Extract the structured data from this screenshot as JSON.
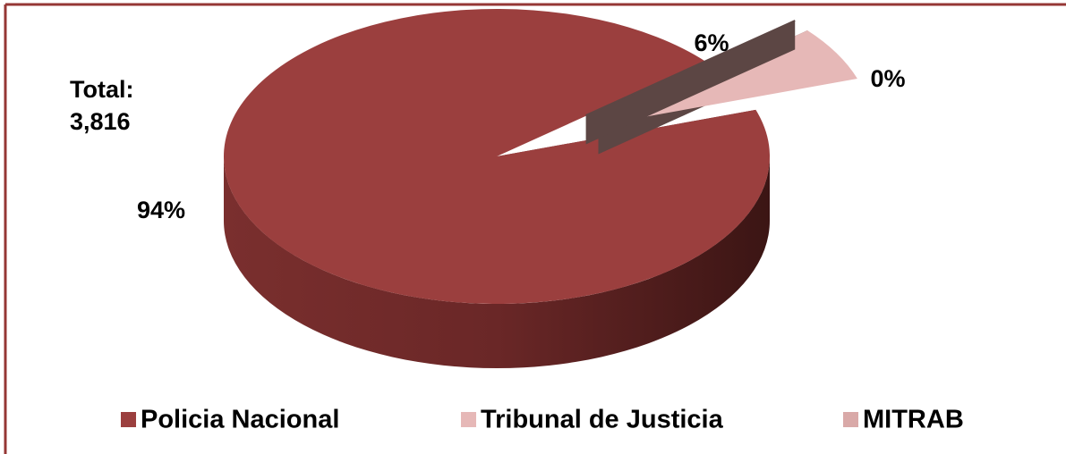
{
  "chart_data": {
    "type": "pie",
    "annotation": [
      "Total:",
      "3,816"
    ],
    "categories": [
      "Policia Nacional",
      "Tribunal de Justicia",
      "MITRAB"
    ],
    "values": [
      94,
      6,
      0
    ],
    "value_labels": [
      "94%",
      "6%",
      "0%"
    ],
    "colors": [
      "#9b3f3e",
      "#e6b8b7",
      "#d9a9a8"
    ],
    "legend": "bottom"
  }
}
